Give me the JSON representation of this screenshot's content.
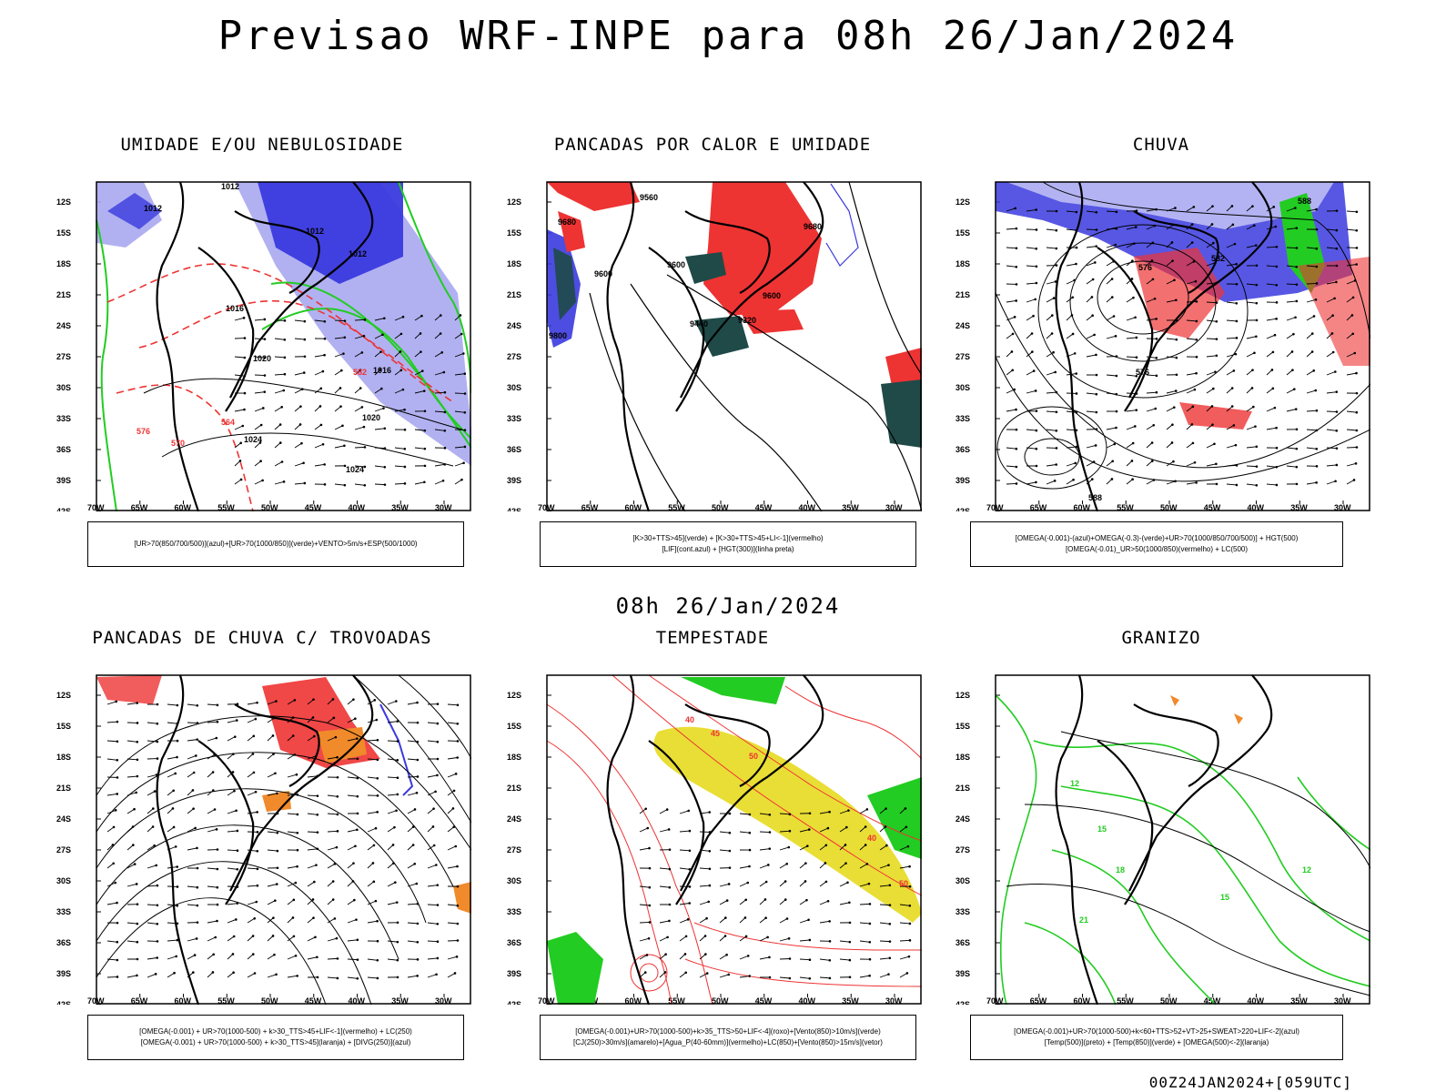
{
  "header": {
    "title": "Previsao WRF-INPE  para 08h 26/Jan/2024"
  },
  "mid_title": "08h 26/Jan/2024",
  "footer": {
    "stamp": "00Z24JAN2024+[059UTC]"
  },
  "axes": {
    "lat_labels": [
      "12S",
      "15S",
      "18S",
      "21S",
      "24S",
      "27S",
      "30S",
      "33S",
      "36S",
      "39S",
      "42S"
    ],
    "lon_labels": [
      "70W",
      "65W",
      "60W",
      "55W",
      "50W",
      "45W",
      "40W",
      "35W",
      "30W"
    ]
  },
  "colors": {
    "blue": "#3a3adf",
    "light_blue": "#a9a9f0",
    "green": "#22cc22",
    "red": "#ee3333",
    "dark_teal": "#1f4a48",
    "orange": "#f08a2a",
    "yellow": "#e8dc2a"
  },
  "panels": [
    {
      "title": "UMIDADE E/OU NEBULOSIDADE",
      "legend": [
        "[UR>70(850/700/500)](azul)+[UR>70(1000/850)](verde)+VENTO>5m/s+ESP(500/1000)"
      ],
      "labels": [
        "1012",
        "1012",
        "1012",
        "1012",
        "1016",
        "1016",
        "1020",
        "1020",
        "1024",
        "1024",
        "570",
        "576",
        "564",
        "582"
      ]
    },
    {
      "title": "PANCADAS POR CALOR E UMIDADE",
      "legend": [
        "[K>30+TTS>45](verde) + [K>30+TTS>45+LI<-1](vermelho)",
        "[LIF](cont.azul) + [HGT(300)](linha preta)"
      ],
      "labels": [
        "9560",
        "9680",
        "9600",
        "9600",
        "9600",
        "9440",
        "9320",
        "9680",
        "9800"
      ]
    },
    {
      "title": "CHUVA",
      "legend": [
        "[OMEGA(-0.001)-(azul)+OMEGA(-0.3)-(verde)+UR>70(1000/850/700/500)] + HGT(500)",
        "[OMEGA(-0.01)_UR>50(1000/850)(vermelho) + LC(500)"
      ],
      "labels": [
        "588",
        "576",
        "582",
        "576",
        "588"
      ]
    },
    {
      "title": "PANCADAS DE CHUVA C/ TROVOADAS",
      "legend": [
        "[OMEGA(-0.001) + UR>70(1000-500) + k>30_TTS>45+LIF<-1](vermelho) + LC(250)",
        "[OMEGA(-0.001) + UR>70(1000-500) + k>30_TTS>45](laranja) + [DIVG(250)](azul)"
      ],
      "labels": []
    },
    {
      "title": "TEMPESTADE",
      "legend": [
        "[OMEGA(-0.001)+UR>70(1000-500)+k>35_TTS>50+LIF<-4](roxo)+[Vento(850)>10m/s](verde)",
        "[CJ(250)>30m/s](amarelo)+[Agua_P(40-60mm)](vermelho)+LC(850)+[Vento(850)>15m/s](vetor)"
      ],
      "labels": [
        "40",
        "45",
        "50",
        "40",
        "50"
      ]
    },
    {
      "title": "GRANIZO",
      "legend": [
        "[OMEGA(-0.001)+UR>70(1000-500)+k<60+TTS>52+VT>25+SWEAT>220+LIF<-2](azul)",
        "[Temp(500)](preto) + [Temp(850)](verde) + [OMEGA(500)<-2](laranja)"
      ],
      "labels": [
        "12",
        "15",
        "18",
        "21",
        "15",
        "12"
      ]
    }
  ]
}
